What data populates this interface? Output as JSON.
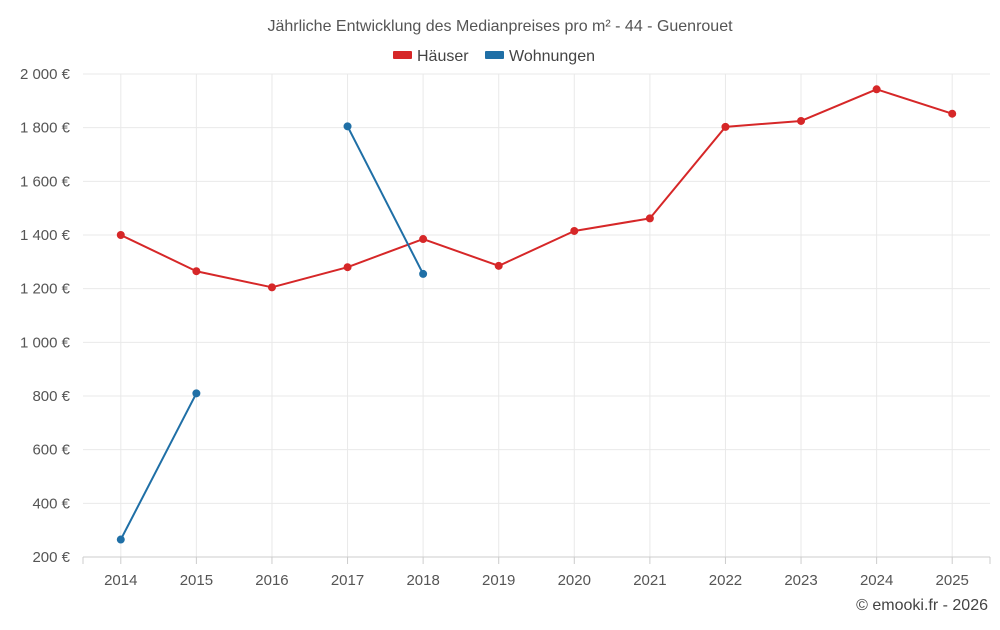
{
  "chart_data": {
    "type": "line",
    "title": "Jährliche Entwicklung des Medianpreises pro m² - 44 - Guenrouet",
    "xlabel": "",
    "ylabel": "",
    "categories": [
      "2014",
      "2015",
      "2016",
      "2017",
      "2018",
      "2019",
      "2020",
      "2021",
      "2022",
      "2023",
      "2024",
      "2025"
    ],
    "ylim": [
      200,
      2000
    ],
    "yticks": [
      200,
      400,
      600,
      800,
      1000,
      1200,
      1400,
      1600,
      1800,
      2000
    ],
    "ytick_labels": [
      "200 €",
      "400 €",
      "600 €",
      "800 €",
      "1 000 €",
      "1 200 €",
      "1 400 €",
      "1 600 €",
      "1 800 €",
      "2 000 €"
    ],
    "grid": true,
    "legend_position": "top-center",
    "series": [
      {
        "name": "Häuser",
        "color": "#d62728",
        "values": [
          1400,
          1265,
          1205,
          1280,
          1385,
          1285,
          1415,
          1462,
          1803,
          1825,
          1943,
          1852
        ]
      },
      {
        "name": "Wohnungen",
        "color": "#1f6fa6",
        "values": [
          265,
          810,
          null,
          1805,
          1255,
          null,
          null,
          null,
          null,
          null,
          null,
          null
        ]
      }
    ]
  },
  "credit": "© emooki.fr - 2026"
}
